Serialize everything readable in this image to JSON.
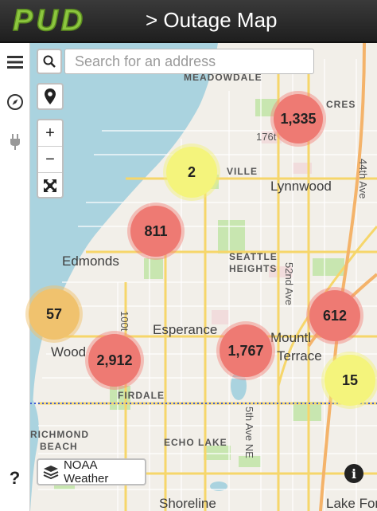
{
  "header": {
    "logo_text": "PUD",
    "title": "> Outage Map"
  },
  "rail": {
    "menu_icon": "hamburger-icon",
    "compass_icon": "compass-icon",
    "plug_icon": "plug-icon",
    "help_label": "?"
  },
  "search": {
    "placeholder": "Search for an address"
  },
  "zoom": {
    "in_label": "+",
    "out_label": "−"
  },
  "layers": {
    "noaa_label": "NOAA Weather"
  },
  "info_label": "i",
  "places": {
    "meadowdale": "MEADOWDALE",
    "cres": "CRES",
    "ville": "VILLE",
    "lynnwood": "Lynnwood",
    "edmonds": "Edmonds",
    "seattle": "SEATTLE",
    "heights": "HEIGHTS",
    "ave52": "52nd Ave",
    "ave44": "44th Ave",
    "esperance": "Esperance",
    "mountlake": "Mountl",
    "terrace": "Terrace",
    "wood": "Wood",
    "firdale": "FIRDALE",
    "richmond": "RICHMOND",
    "beach": "BEACH",
    "echolake": "ECHO LAKE",
    "st5th": "5th Ave NE",
    "shoreline": "Shoreline",
    "lakefor": "Lake For",
    "st176": "176t",
    "st100": "100t"
  },
  "clusters": [
    {
      "label": "1,335",
      "count": 1335,
      "color": "red"
    },
    {
      "label": "2",
      "count": 2,
      "color": "yellow"
    },
    {
      "label": "811",
      "count": 811,
      "color": "red"
    },
    {
      "label": "57",
      "count": 57,
      "color": "orange"
    },
    {
      "label": "2,912",
      "count": 2912,
      "color": "red"
    },
    {
      "label": "1,767",
      "count": 1767,
      "color": "red"
    },
    {
      "label": "612",
      "count": 612,
      "color": "red"
    },
    {
      "label": "15",
      "count": 15,
      "color": "yellow"
    }
  ],
  "colors": {
    "water": "#aad3df",
    "land": "#f2efe9",
    "road": "#f6d66a",
    "cluster_red": "#ee7a73",
    "cluster_yellow": "#f4f47c",
    "cluster_orange": "#f0c26e",
    "logo_green": "#8cc63f"
  }
}
